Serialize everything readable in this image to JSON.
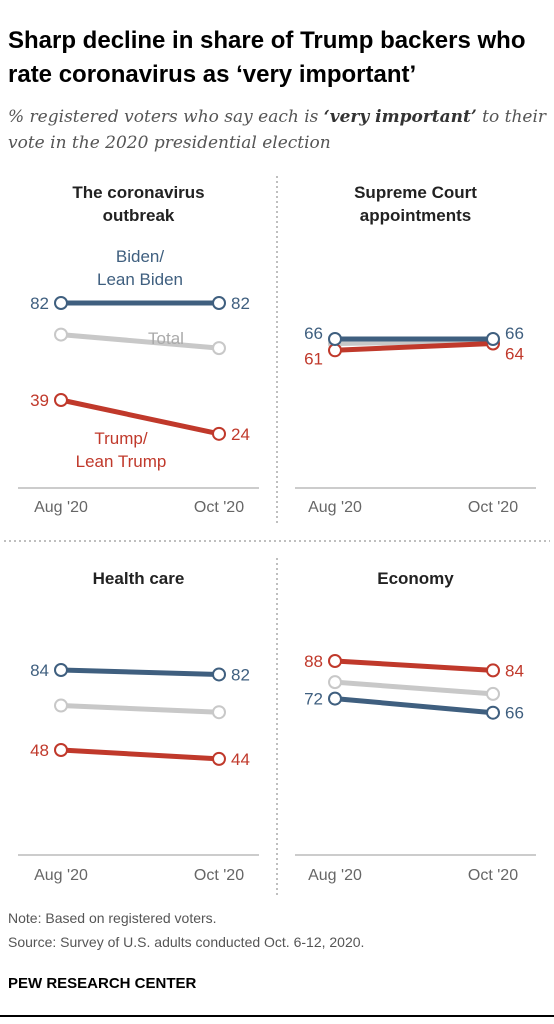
{
  "header": {
    "title": "Sharp decline in share of Trump backers who rate coronavirus as ‘very important’",
    "subtitle_pre": "% registered voters who say each is ",
    "subtitle_em": "‘very important’",
    "subtitle_post": " to their vote in the 2020 presidential election"
  },
  "colors": {
    "biden": "#3f5f7f",
    "trump": "#c0392b",
    "total": "#c8c8c8",
    "axis": "#999999",
    "divider": "#aaaaaa"
  },
  "chart_data": [
    {
      "type": "line",
      "title": [
        "The coronavirus",
        "outbreak"
      ],
      "categories": [
        "Aug '20",
        "Oct '20"
      ],
      "series": [
        {
          "name": "Biden/\nLean Biden",
          "key": "biden",
          "values": [
            82,
            82
          ],
          "labels": [
            "82",
            "82"
          ]
        },
        {
          "name": "Total",
          "key": "total",
          "values": [
            68,
            62
          ],
          "labels": [
            "",
            ""
          ]
        },
        {
          "name": "Trump/\nLean Trump",
          "key": "trump",
          "values": [
            39,
            24
          ],
          "labels": [
            "39",
            "24"
          ]
        }
      ]
    },
    {
      "type": "line",
      "title": [
        "Supreme Court",
        "appointments"
      ],
      "categories": [
        "Aug '20",
        "Oct '20"
      ],
      "series": [
        {
          "name": "",
          "key": "total",
          "values": [
            64,
            65
          ],
          "labels": [
            "",
            ""
          ]
        },
        {
          "name": "",
          "key": "trump",
          "values": [
            61,
            64
          ],
          "labels": [
            "61",
            "64"
          ]
        },
        {
          "name": "",
          "key": "biden",
          "values": [
            66,
            66
          ],
          "labels": [
            "66",
            "66"
          ]
        }
      ]
    },
    {
      "type": "line",
      "title": [
        "Health care"
      ],
      "categories": [
        "Aug '20",
        "Oct '20"
      ],
      "series": [
        {
          "name": "",
          "key": "biden",
          "values": [
            84,
            82
          ],
          "labels": [
            "84",
            "82"
          ]
        },
        {
          "name": "",
          "key": "total",
          "values": [
            68,
            65
          ],
          "labels": [
            "",
            ""
          ]
        },
        {
          "name": "",
          "key": "trump",
          "values": [
            48,
            44
          ],
          "labels": [
            "48",
            "44"
          ]
        }
      ]
    },
    {
      "type": "line",
      "title": [
        "Economy"
      ],
      "categories": [
        "Aug '20",
        "Oct '20"
      ],
      "series": [
        {
          "name": "",
          "key": "total",
          "values": [
            79,
            74
          ],
          "labels": [
            "",
            ""
          ]
        },
        {
          "name": "",
          "key": "trump",
          "values": [
            88,
            84
          ],
          "labels": [
            "88",
            "84"
          ]
        },
        {
          "name": "",
          "key": "biden",
          "values": [
            72,
            66
          ],
          "labels": [
            "72",
            "66"
          ]
        }
      ]
    }
  ],
  "footer": {
    "note": "Note: Based on registered voters.",
    "source": "Source: Survey of U.S. adults conducted Oct. 6-12, 2020.",
    "brand": "PEW RESEARCH CENTER"
  }
}
